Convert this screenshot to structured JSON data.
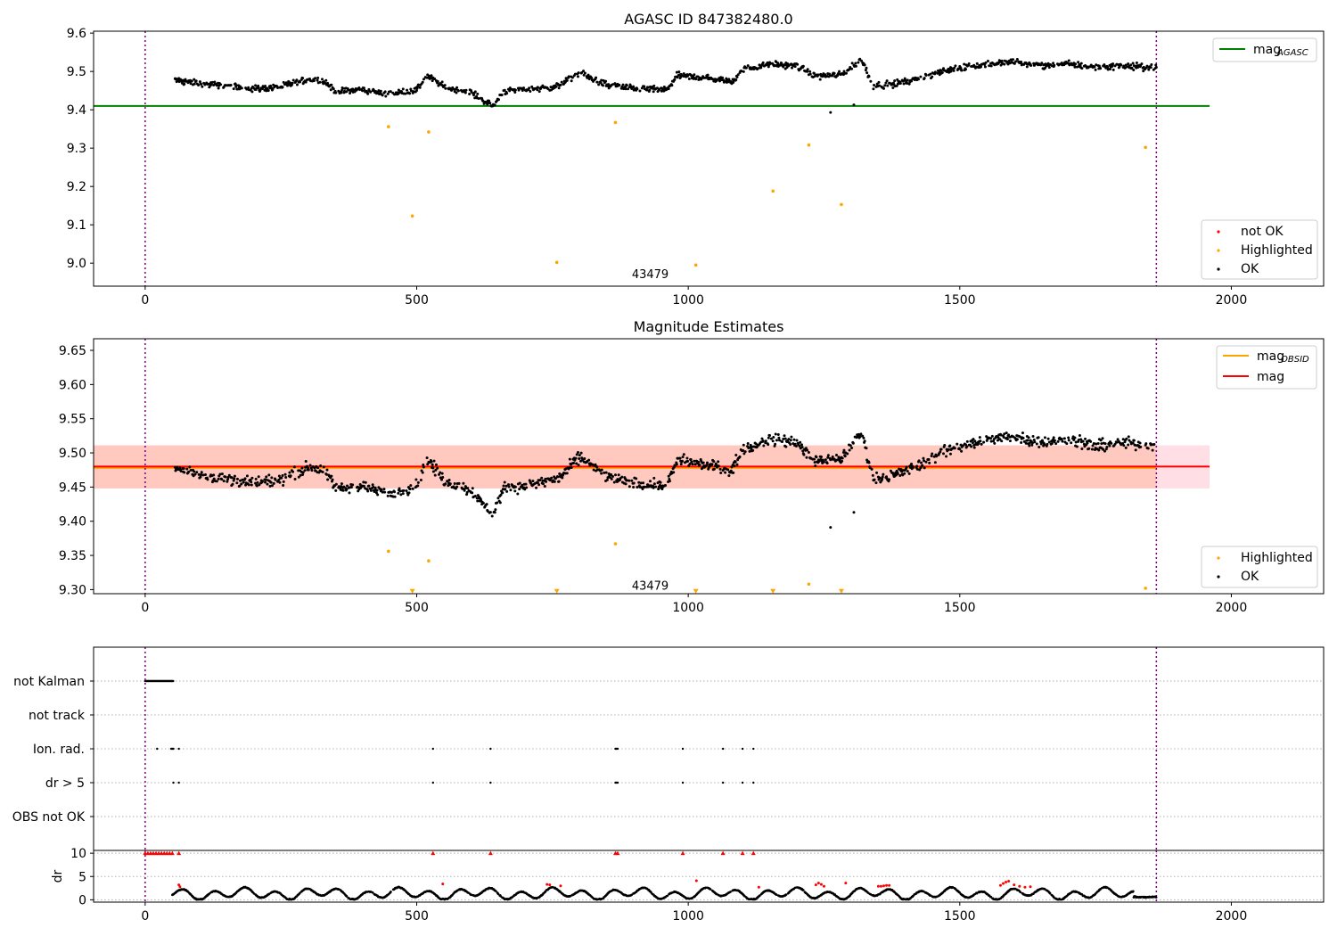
{
  "chart_data": [
    {
      "type": "scatter",
      "title": "AGASC ID 847382480.0",
      "xlabel": "",
      "ylabel": "",
      "xlim": [
        -95,
        2170
      ],
      "ylim": [
        8.94,
        9.605
      ],
      "x_ticks": [
        0,
        500,
        1000,
        1500,
        2000
      ],
      "y_ticks": [
        9.0,
        9.1,
        9.2,
        9.3,
        9.4,
        9.5,
        9.6
      ],
      "grid": false,
      "vlines": [
        0,
        1862
      ],
      "hlines": [
        {
          "name": "mag_AGASC",
          "y": 9.41,
          "x_range": [
            -95,
            1960
          ],
          "color": "#008000"
        }
      ],
      "legend_top": {
        "placement": "top-right",
        "entries": [
          {
            "label": "mag",
            "sub": "AGASC",
            "color": "#008000"
          }
        ]
      },
      "legend_bottom": {
        "placement": "bottom-right",
        "entries": [
          {
            "label": "not OK",
            "color": "#ff0000"
          },
          {
            "label": "Highlighted",
            "color": "#ffa500"
          },
          {
            "label": "OK",
            "color": "#000000"
          }
        ]
      },
      "annotations": [
        {
          "text": "43479",
          "x": 930,
          "y": 8.97
        }
      ],
      "series": [
        {
          "name": "OK",
          "color": "#000000",
          "trend": [
            [
              55,
              9.478
            ],
            [
              100,
              9.468
            ],
            [
              150,
              9.462
            ],
            [
              200,
              9.455
            ],
            [
              250,
              9.46
            ],
            [
              300,
              9.48
            ],
            [
              330,
              9.475
            ],
            [
              350,
              9.448
            ],
            [
              400,
              9.452
            ],
            [
              450,
              9.44
            ],
            [
              500,
              9.452
            ],
            [
              520,
              9.49
            ],
            [
              550,
              9.46
            ],
            [
              600,
              9.445
            ],
            [
              640,
              9.41
            ],
            [
              660,
              9.448
            ],
            [
              720,
              9.455
            ],
            [
              760,
              9.462
            ],
            [
              800,
              9.495
            ],
            [
              850,
              9.465
            ],
            [
              900,
              9.455
            ],
            [
              960,
              9.452
            ],
            [
              980,
              9.49
            ],
            [
              1020,
              9.485
            ],
            [
              1080,
              9.475
            ],
            [
              1100,
              9.505
            ],
            [
              1150,
              9.52
            ],
            [
              1200,
              9.515
            ],
            [
              1230,
              9.49
            ],
            [
              1280,
              9.49
            ],
            [
              1320,
              9.53
            ],
            [
              1340,
              9.462
            ],
            [
              1380,
              9.468
            ],
            [
              1420,
              9.48
            ],
            [
              1480,
              9.505
            ],
            [
              1500,
              9.51
            ],
            [
              1560,
              9.52
            ],
            [
              1600,
              9.525
            ],
            [
              1650,
              9.515
            ],
            [
              1700,
              9.52
            ],
            [
              1750,
              9.51
            ],
            [
              1800,
              9.515
            ],
            [
              1862,
              9.51
            ]
          ],
          "outliers": [
            [
              1262,
              9.393
            ],
            [
              1305,
              9.413
            ]
          ]
        },
        {
          "name": "Highlighted",
          "color": "#ffa500",
          "x": [
            448,
            492,
            522,
            758,
            866,
            1014,
            1156,
            1222,
            1282,
            1842
          ],
          "y": [
            9.356,
            9.123,
            9.342,
            9.002,
            9.367,
            8.995,
            9.188,
            9.308,
            9.153,
            9.302
          ]
        }
      ]
    },
    {
      "type": "scatter",
      "title": "Magnitude Estimates",
      "xlabel": "",
      "ylabel": "",
      "xlim": [
        -95,
        2170
      ],
      "ylim": [
        9.294,
        9.667
      ],
      "x_ticks": [
        0,
        500,
        1000,
        1500,
        2000
      ],
      "y_ticks": [
        9.3,
        9.35,
        9.4,
        9.45,
        9.5,
        9.55,
        9.6,
        9.65
      ],
      "grid": false,
      "vlines": [
        0,
        1862
      ],
      "hlines": [
        {
          "name": "mag_OBSID",
          "y": 9.478,
          "x_range": [
            -95,
            1862
          ],
          "color": "#ffa500"
        },
        {
          "name": "mag",
          "y": 9.48,
          "x_range": [
            -95,
            1960
          ],
          "color": "#ff0000"
        }
      ],
      "bands": [
        {
          "y_range": [
            9.448,
            9.511
          ],
          "x_range": [
            -95,
            1960
          ],
          "color": "#ffc0cb",
          "opacity": 0.5
        },
        {
          "y_range": [
            9.448,
            9.511
          ],
          "x_range": [
            -95,
            1862
          ],
          "color": "#ffa07a",
          "opacity": 0.35
        }
      ],
      "legend_top": {
        "placement": "top-right",
        "entries": [
          {
            "label": "mag",
            "sub": "OBSID",
            "color": "#ffa500"
          },
          {
            "label": "mag",
            "sub": "",
            "color": "#ff0000"
          }
        ]
      },
      "legend_bottom": {
        "placement": "bottom-right",
        "entries": [
          {
            "label": "Highlighted",
            "color": "#ffa500"
          },
          {
            "label": "OK",
            "color": "#000000"
          }
        ]
      },
      "annotations": [
        {
          "text": "43479",
          "x": 930,
          "y": 9.305
        }
      ],
      "series": [
        {
          "name": "OK",
          "color": "#000000",
          "trend": [
            [
              55,
              9.478
            ],
            [
              100,
              9.468
            ],
            [
              150,
              9.462
            ],
            [
              200,
              9.455
            ],
            [
              250,
              9.46
            ],
            [
              300,
              9.48
            ],
            [
              330,
              9.475
            ],
            [
              350,
              9.448
            ],
            [
              400,
              9.452
            ],
            [
              450,
              9.44
            ],
            [
              500,
              9.452
            ],
            [
              520,
              9.49
            ],
            [
              550,
              9.46
            ],
            [
              600,
              9.445
            ],
            [
              640,
              9.41
            ],
            [
              660,
              9.448
            ],
            [
              720,
              9.455
            ],
            [
              760,
              9.462
            ],
            [
              800,
              9.495
            ],
            [
              850,
              9.465
            ],
            [
              900,
              9.455
            ],
            [
              960,
              9.452
            ],
            [
              980,
              9.49
            ],
            [
              1020,
              9.485
            ],
            [
              1080,
              9.475
            ],
            [
              1100,
              9.505
            ],
            [
              1150,
              9.52
            ],
            [
              1200,
              9.515
            ],
            [
              1230,
              9.49
            ],
            [
              1280,
              9.49
            ],
            [
              1320,
              9.53
            ],
            [
              1340,
              9.462
            ],
            [
              1380,
              9.468
            ],
            [
              1420,
              9.48
            ],
            [
              1480,
              9.505
            ],
            [
              1500,
              9.51
            ],
            [
              1560,
              9.52
            ],
            [
              1600,
              9.525
            ],
            [
              1650,
              9.515
            ],
            [
              1700,
              9.52
            ],
            [
              1750,
              9.51
            ],
            [
              1800,
              9.515
            ],
            [
              1862,
              9.51
            ]
          ],
          "outliers": [
            [
              1262,
              9.391
            ],
            [
              1305,
              9.413
            ]
          ]
        },
        {
          "name": "Highlighted",
          "color": "#ffa500",
          "x": [
            448,
            522,
            866,
            1222,
            1842
          ],
          "y": [
            9.356,
            9.342,
            9.367,
            9.308,
            9.302
          ]
        },
        {
          "name": "Highlighted (below range)",
          "color": "#ffa500",
          "marker": "triangle-down",
          "x": [
            492,
            758,
            1014,
            1156,
            1282
          ],
          "y": [
            9.297,
            9.297,
            9.297,
            9.297,
            9.297
          ]
        }
      ]
    },
    {
      "type": "scatter",
      "title": "",
      "xlabel": "",
      "ylabel": "",
      "xlim": [
        -95,
        2170
      ],
      "x_ticks": [
        0,
        500,
        1000,
        1500,
        2000
      ],
      "categories": [
        "not Kalman",
        "not track",
        "Ion. rad.",
        "dr > 5",
        "OBS not OK"
      ],
      "grid": "dotted horizontal",
      "vlines": [
        0,
        1862
      ],
      "flags": {
        "not Kalman": {
          "x_range": [
            0,
            52
          ]
        },
        "not track": {
          "x": []
        },
        "Ion. rad.": {
          "x": [
            22,
            48,
            50,
            52,
            62,
            530,
            636,
            866,
            868,
            870,
            990,
            1064,
            1100,
            1120
          ]
        },
        "dr > 5": {
          "x": [
            52,
            62,
            530,
            636,
            866,
            868,
            870,
            990,
            1064,
            1100,
            1120
          ]
        },
        "OBS not OK": {
          "x": []
        }
      }
    },
    {
      "type": "scatter",
      "title": "",
      "xlabel": "",
      "ylabel": "dr",
      "xlim": [
        -95,
        2170
      ],
      "ylim": [
        -0.5,
        10.6
      ],
      "x_ticks": [
        0,
        500,
        1000,
        1500,
        2000
      ],
      "y_ticks": [
        0,
        5,
        10
      ],
      "grid": "dotted horizontal",
      "vlines": [
        0,
        1862
      ],
      "series": [
        {
          "name": "dr",
          "color": "#000000",
          "x_range": [
            50,
            1862
          ]
        },
        {
          "name": "dr clipped",
          "color": "#ff0000",
          "marker": "triangle-up",
          "y": 10,
          "x": [
            0,
            5,
            10,
            15,
            20,
            25,
            30,
            35,
            40,
            45,
            50,
            62,
            530,
            636,
            866,
            870,
            990,
            1064,
            1100,
            1120
          ]
        },
        {
          "name": "dr red",
          "color": "#ff0000",
          "x": [
            62,
            64,
            548,
            740,
            745,
            765,
            1015,
            1130,
            1235,
            1240,
            1245,
            1250,
            1290,
            1350,
            1355,
            1360,
            1365,
            1370,
            1575,
            1580,
            1585,
            1590,
            1600,
            1610,
            1620,
            1630
          ],
          "y": [
            3.2,
            2.8,
            3.4,
            3.3,
            3.2,
            3.0,
            4.1,
            2.7,
            3.2,
            3.6,
            3.3,
            2.9,
            3.6,
            2.9,
            2.9,
            3.0,
            3.1,
            3.1,
            3.1,
            3.5,
            3.8,
            4.0,
            3.2,
            2.9,
            2.7,
            2.8
          ]
        }
      ]
    }
  ]
}
